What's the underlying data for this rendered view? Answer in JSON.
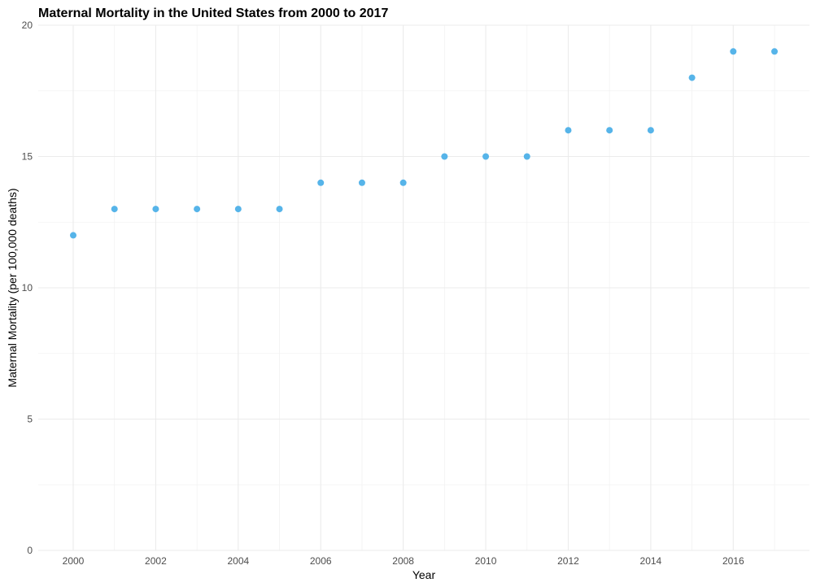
{
  "chart_data": {
    "type": "scatter",
    "title": "Maternal Mortality in the United States from 2000 to 2017",
    "xlabel": "Year",
    "ylabel": "Maternal Mortality (per 100,000 deaths)",
    "x": [
      2000,
      2001,
      2002,
      2003,
      2004,
      2005,
      2006,
      2007,
      2008,
      2009,
      2010,
      2011,
      2012,
      2013,
      2014,
      2015,
      2016,
      2017
    ],
    "y": [
      12,
      13,
      13,
      13,
      13,
      13,
      14,
      14,
      14,
      15,
      15,
      15,
      16,
      16,
      16,
      18,
      19,
      19
    ],
    "xlim": [
      2000,
      2017
    ],
    "ylim": [
      0,
      20
    ],
    "x_ticks": [
      2000,
      2002,
      2004,
      2006,
      2008,
      2010,
      2012,
      2014,
      2016
    ],
    "y_ticks": [
      0,
      5,
      10,
      15,
      20
    ],
    "point_color": "#56b4e9",
    "grid": true,
    "legend": "none"
  }
}
